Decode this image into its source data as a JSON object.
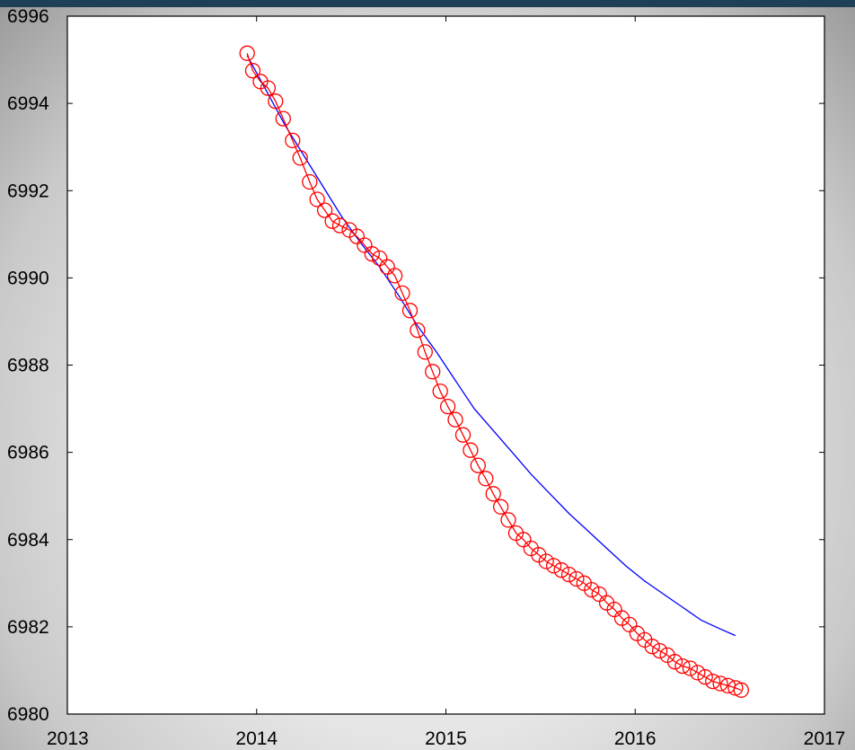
{
  "chart_data": {
    "type": "line",
    "title": "",
    "xlabel": "",
    "ylabel": "",
    "xlim": [
      2013,
      2017
    ],
    "ylim": [
      6980,
      6996
    ],
    "x_ticks": [
      "2013",
      "2014",
      "2015",
      "2016",
      "2017"
    ],
    "y_ticks": [
      "6980",
      "6982",
      "6984",
      "6986",
      "6988",
      "6990",
      "6992",
      "6994",
      "6996"
    ],
    "grid": false,
    "legend": "none",
    "series": [
      {
        "color": "#0000ff",
        "marker": "none",
        "points": [
          [
            2013.95,
            6995.1
          ],
          [
            2014.05,
            6994.3
          ],
          [
            2014.15,
            6993.5
          ],
          [
            2014.25,
            6992.8
          ],
          [
            2014.35,
            6992.1
          ],
          [
            2014.45,
            6991.4
          ],
          [
            2014.55,
            6990.8
          ],
          [
            2014.65,
            6990.25
          ],
          [
            2014.75,
            6989.6
          ],
          [
            2014.85,
            6988.9
          ],
          [
            2014.95,
            6988.3
          ],
          [
            2015.05,
            6987.65
          ],
          [
            2015.15,
            6987.0
          ],
          [
            2015.25,
            6986.5
          ],
          [
            2015.35,
            6986.0
          ],
          [
            2015.45,
            6985.5
          ],
          [
            2015.55,
            6985.05
          ],
          [
            2015.65,
            6984.6
          ],
          [
            2015.75,
            6984.2
          ],
          [
            2015.85,
            6983.8
          ],
          [
            2015.95,
            6983.4
          ],
          [
            2016.05,
            6983.05
          ],
          [
            2016.15,
            6982.75
          ],
          [
            2016.25,
            6982.45
          ],
          [
            2016.35,
            6982.15
          ],
          [
            2016.45,
            6981.95
          ],
          [
            2016.53,
            6981.8
          ]
        ]
      },
      {
        "color": "#ff0000",
        "marker": "circle",
        "points": [
          [
            2013.95,
            6995.15
          ],
          [
            2013.98,
            6994.75
          ],
          [
            2014.02,
            6994.5
          ],
          [
            2014.06,
            6994.35
          ],
          [
            2014.1,
            6994.05
          ],
          [
            2014.14,
            6993.65
          ],
          [
            2014.19,
            6993.15
          ],
          [
            2014.23,
            6992.75
          ],
          [
            2014.28,
            6992.2
          ],
          [
            2014.32,
            6991.8
          ],
          [
            2014.36,
            6991.55
          ],
          [
            2014.4,
            6991.3
          ],
          [
            2014.44,
            6991.2
          ],
          [
            2014.49,
            6991.1
          ],
          [
            2014.53,
            6990.95
          ],
          [
            2014.57,
            6990.75
          ],
          [
            2014.61,
            6990.55
          ],
          [
            2014.65,
            6990.45
          ],
          [
            2014.69,
            6990.25
          ],
          [
            2014.73,
            6990.05
          ],
          [
            2014.77,
            6989.65
          ],
          [
            2014.81,
            6989.25
          ],
          [
            2014.85,
            6988.8
          ],
          [
            2014.89,
            6988.3
          ],
          [
            2014.93,
            6987.85
          ],
          [
            2014.97,
            6987.4
          ],
          [
            2015.01,
            6987.05
          ],
          [
            2015.05,
            6986.75
          ],
          [
            2015.09,
            6986.4
          ],
          [
            2015.13,
            6986.05
          ],
          [
            2015.17,
            6985.7
          ],
          [
            2015.21,
            6985.4
          ],
          [
            2015.25,
            6985.05
          ],
          [
            2015.29,
            6984.75
          ],
          [
            2015.33,
            6984.45
          ],
          [
            2015.37,
            6984.15
          ],
          [
            2015.41,
            6984.0
          ],
          [
            2015.45,
            6983.8
          ],
          [
            2015.49,
            6983.65
          ],
          [
            2015.53,
            6983.5
          ],
          [
            2015.57,
            6983.4
          ],
          [
            2015.61,
            6983.3
          ],
          [
            2015.65,
            6983.2
          ],
          [
            2015.69,
            6983.1
          ],
          [
            2015.73,
            6983.0
          ],
          [
            2015.77,
            6982.85
          ],
          [
            2015.81,
            6982.75
          ],
          [
            2015.85,
            6982.55
          ],
          [
            2015.89,
            6982.4
          ],
          [
            2015.93,
            6982.2
          ],
          [
            2015.97,
            6982.05
          ],
          [
            2016.01,
            6981.85
          ],
          [
            2016.05,
            6981.7
          ],
          [
            2016.09,
            6981.55
          ],
          [
            2016.13,
            6981.45
          ],
          [
            2016.17,
            6981.35
          ],
          [
            2016.21,
            6981.2
          ],
          [
            2016.25,
            6981.1
          ],
          [
            2016.29,
            6981.05
          ],
          [
            2016.33,
            6980.95
          ],
          [
            2016.37,
            6980.85
          ],
          [
            2016.41,
            6980.75
          ],
          [
            2016.45,
            6980.7
          ],
          [
            2016.49,
            6980.65
          ],
          [
            2016.53,
            6980.6
          ],
          [
            2016.56,
            6980.55
          ]
        ]
      }
    ]
  }
}
